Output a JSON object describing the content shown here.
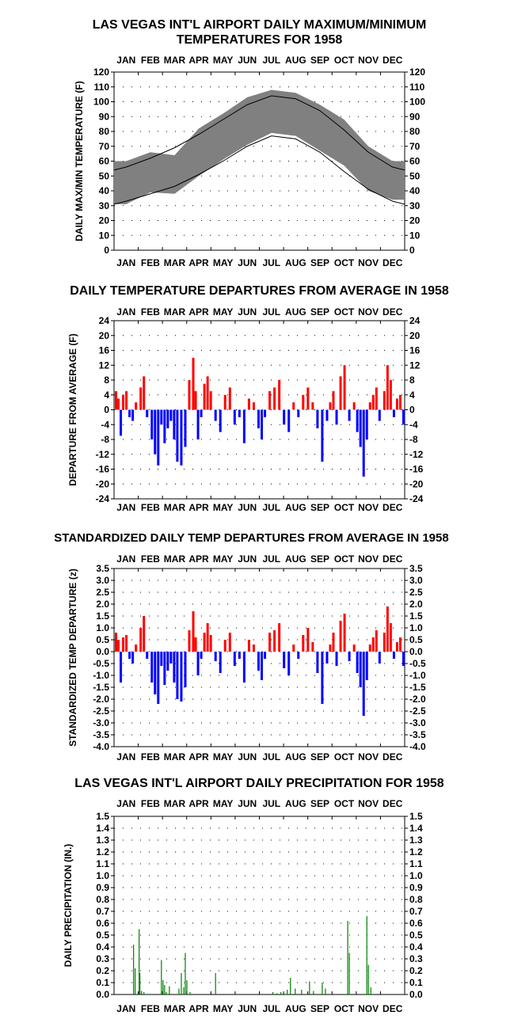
{
  "colors": {
    "range_band": "#808080",
    "normal_line": "#000000",
    "above": "#ff0000",
    "below": "#0000ff",
    "precip": "#008000",
    "grid": "#000000"
  },
  "months": [
    "JAN",
    "FEB",
    "MAR",
    "APR",
    "MAY",
    "JUN",
    "JUL",
    "AUG",
    "SEP",
    "OCT",
    "NOV",
    "DEC"
  ],
  "chart_data": [
    {
      "type": "area",
      "title_lines": [
        "LAS VEGAS INT'L AIRPORT DAILY MAXIMUM/MINIMUM",
        "TEMPERATURES FOR 1958"
      ],
      "ylabel": "DAILY MAX/MIN TEMPERATURE (F)",
      "xticks": [
        "JAN",
        "FEB",
        "MAR",
        "APR",
        "MAY",
        "JUN",
        "JUL",
        "AUG",
        "SEP",
        "OCT",
        "NOV",
        "DEC"
      ],
      "ylim": [
        0,
        120
      ],
      "yticks": [
        "0",
        "10",
        "20",
        "30",
        "40",
        "50",
        "60",
        "70",
        "80",
        "90",
        "100",
        "110",
        "120"
      ],
      "grid": true,
      "normal_max": {
        "months": [
          1,
          2,
          3,
          4,
          5,
          6,
          7,
          8,
          9,
          10,
          11,
          12
        ],
        "values": [
          56,
          62,
          69,
          78,
          88,
          98,
          104,
          102,
          94,
          81,
          66,
          56
        ]
      },
      "normal_min": {
        "months": [
          1,
          2,
          3,
          4,
          5,
          6,
          7,
          8,
          9,
          10,
          11,
          12
        ],
        "values": [
          33,
          38,
          43,
          51,
          60,
          70,
          77,
          75,
          66,
          53,
          41,
          33
        ]
      },
      "series": [
        {
          "name": "",
          "months": [
            1,
            2,
            3,
            4,
            5,
            6,
            7,
            8,
            9,
            10,
            11,
            12
          ],
          "max": [
            60,
            66,
            64,
            82,
            92,
            103,
            108,
            106,
            98,
            88,
            70,
            60
          ],
          "min": [
            31,
            39,
            38,
            50,
            61,
            71,
            79,
            77,
            67,
            57,
            40,
            34
          ]
        }
      ]
    },
    {
      "type": "bar",
      "title": "DAILY TEMPERATURE DEPARTURES FROM AVERAGE IN 1958",
      "ylabel": "DEPARTURE FROM AVERAGE (F)",
      "xticks": [
        "JAN",
        "FEB",
        "MAR",
        "APR",
        "MAY",
        "JUN",
        "JUL",
        "AUG",
        "SEP",
        "OCT",
        "NOV",
        "DEC"
      ],
      "ylim": [
        -24,
        24
      ],
      "yticks": [
        "-24",
        "-20",
        "-16",
        "-12",
        "-8",
        "-4",
        "0",
        "4",
        "8",
        "12",
        "16",
        "20",
        "24"
      ],
      "grid": true,
      "series": [
        {
          "name": "",
          "x_day": [
            3,
            6,
            9,
            12,
            16,
            20,
            24,
            28,
            34,
            38,
            42,
            48,
            52,
            56,
            60,
            64,
            68,
            72,
            76,
            80,
            85,
            90,
            95,
            100,
            103,
            106,
            110,
            114,
            118,
            122,
            128,
            134,
            140,
            146,
            152,
            158,
            164,
            170,
            176,
            182,
            186,
            190,
            196,
            202,
            208,
            214,
            220,
            226,
            232,
            238,
            244,
            250,
            256,
            262,
            268,
            272,
            276,
            280,
            285,
            290,
            296,
            302,
            306,
            310,
            314,
            318,
            322,
            326,
            330,
            334,
            340,
            344,
            348,
            352,
            356,
            360,
            364
          ],
          "values": [
            5,
            3,
            -7,
            4,
            5,
            -2,
            -3,
            2,
            6,
            9,
            -2,
            -8,
            -12,
            -15,
            -4,
            -9,
            -5,
            -3,
            -8,
            -14,
            -15,
            -10,
            8,
            14,
            5,
            -8,
            -2,
            7,
            9,
            5,
            -3,
            -6,
            4,
            6,
            -4,
            -2,
            -9,
            3,
            2,
            -5,
            -8,
            -2,
            5,
            6,
            8,
            -4,
            -6,
            2,
            -2,
            4,
            6,
            2,
            -5,
            -14,
            -3,
            2,
            5,
            -4,
            9,
            12,
            -3,
            2,
            -6,
            -10,
            -18,
            -8,
            2,
            4,
            6,
            -3,
            5,
            12,
            8,
            -2,
            3,
            4,
            -4
          ]
        }
      ]
    },
    {
      "type": "bar",
      "title": "STANDARDIZED DAILY TEMP DEPARTURES FROM AVERAGE IN 1958",
      "ylabel": "STANDARDIZED TEMP DEPARTURE (z)",
      "xticks": [
        "JAN",
        "FEB",
        "MAR",
        "APR",
        "MAY",
        "JUN",
        "JUL",
        "AUG",
        "SEP",
        "OCT",
        "NOV",
        "DEC"
      ],
      "ylim": [
        -4.0,
        3.5
      ],
      "yticks": [
        "-4.0",
        "-3.5",
        "-3.0",
        "-2.5",
        "-2.0",
        "-1.5",
        "-1.0",
        "-0.5",
        "0.0",
        "0.5",
        "1.0",
        "1.5",
        "2.0",
        "2.5",
        "3.0",
        "3.5"
      ],
      "grid": true,
      "series": [
        {
          "name": "",
          "x_day": [
            3,
            6,
            9,
            12,
            16,
            20,
            24,
            28,
            34,
            38,
            42,
            48,
            52,
            56,
            60,
            64,
            68,
            72,
            76,
            80,
            85,
            90,
            95,
            100,
            103,
            106,
            110,
            114,
            118,
            122,
            128,
            134,
            140,
            146,
            152,
            158,
            164,
            170,
            176,
            182,
            186,
            190,
            196,
            202,
            208,
            214,
            220,
            226,
            232,
            238,
            244,
            250,
            256,
            262,
            268,
            272,
            276,
            280,
            285,
            290,
            296,
            302,
            306,
            310,
            314,
            318,
            322,
            326,
            330,
            334,
            340,
            344,
            348,
            352,
            356,
            360,
            364
          ],
          "values": [
            0.8,
            0.5,
            -1.3,
            0.6,
            0.7,
            -0.3,
            -0.5,
            0.3,
            1.0,
            1.5,
            -0.3,
            -1.3,
            -1.8,
            -2.2,
            -0.6,
            -1.4,
            -0.8,
            -0.5,
            -1.3,
            -2.0,
            -2.1,
            -1.5,
            0.9,
            1.7,
            0.6,
            -1.0,
            -0.3,
            0.8,
            1.2,
            0.7,
            -0.4,
            -0.9,
            0.5,
            0.8,
            -0.6,
            -0.3,
            -1.3,
            0.5,
            0.3,
            -0.8,
            -1.2,
            -0.3,
            0.8,
            0.9,
            1.2,
            -0.7,
            -1.0,
            0.3,
            -0.3,
            0.7,
            1.0,
            0.4,
            -0.9,
            -2.2,
            -0.5,
            0.3,
            0.8,
            -0.6,
            1.3,
            1.6,
            -0.4,
            0.3,
            -0.9,
            -1.5,
            -2.7,
            -1.2,
            0.3,
            0.6,
            0.9,
            -0.5,
            0.8,
            1.9,
            1.2,
            -0.3,
            0.4,
            0.6,
            -0.6
          ]
        }
      ]
    },
    {
      "type": "bar",
      "title": "LAS VEGAS INT'L AIRPORT DAILY PRECIPITATION FOR 1958",
      "ylabel": "DAILY PRECIPITATION (IN.)",
      "xticks": [
        "JAN",
        "FEB",
        "MAR",
        "APR",
        "MAY",
        "JUN",
        "JUL",
        "AUG",
        "SEP",
        "OCT",
        "NOV",
        "DEC"
      ],
      "ylim": [
        0.0,
        1.5
      ],
      "yticks": [
        "0.0",
        "0.1",
        "0.2",
        "0.3",
        "0.4",
        "0.5",
        "0.6",
        "0.7",
        "0.8",
        "0.9",
        "1.0",
        "1.1",
        "1.2",
        "1.3",
        "1.4",
        "1.5"
      ],
      "grid": true,
      "series": [
        {
          "name": "",
          "x_day": [
            25,
            27,
            32,
            33,
            35,
            38,
            60,
            62,
            64,
            66,
            70,
            82,
            85,
            88,
            90,
            92,
            96,
            128,
            200,
            205,
            210,
            218,
            222,
            228,
            236,
            246,
            251,
            262,
            266,
            294,
            296,
            318,
            320,
            323
          ],
          "values": [
            0.42,
            0.22,
            0.55,
            0.18,
            0.03,
            0.02,
            0.29,
            0.12,
            0.08,
            0.02,
            0.07,
            0.05,
            0.18,
            0.06,
            0.35,
            0.12,
            0.02,
            0.18,
            0.02,
            0.01,
            0.02,
            0.04,
            0.14,
            0.05,
            0.04,
            0.11,
            0.03,
            0.1,
            0.05,
            0.62,
            0.35,
            0.66,
            0.25,
            0.06
          ]
        }
      ]
    }
  ]
}
